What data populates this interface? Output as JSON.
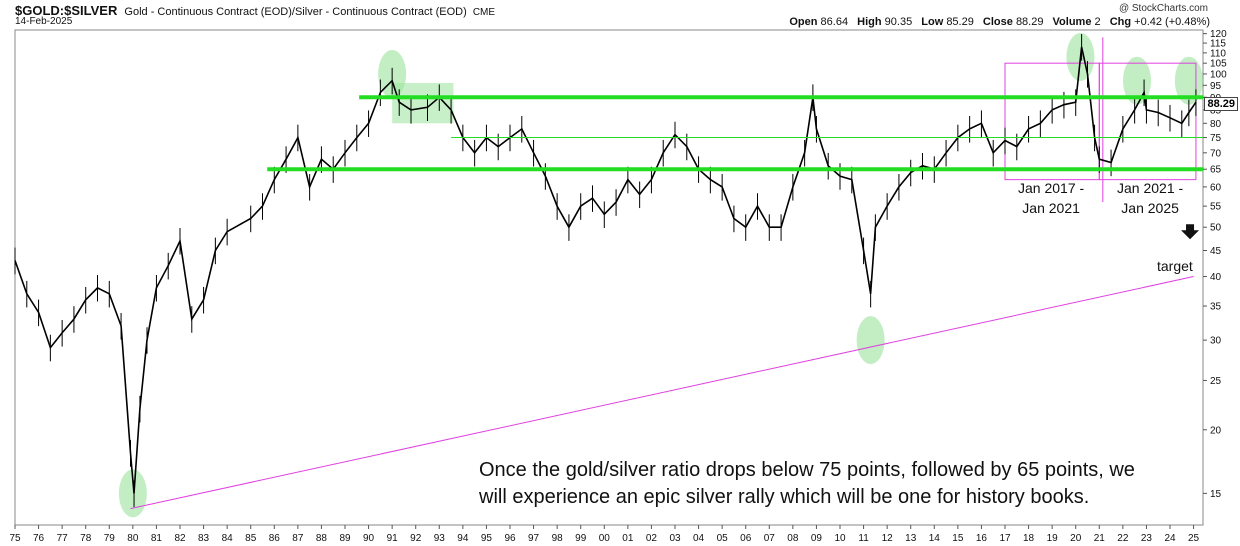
{
  "header": {
    "symbol": "$GOLD:$SILVER",
    "description": "Gold - Continuous Contract (EOD)/Silver - Continuous Contract (EOD)",
    "exchange": "CME",
    "date": "14-Feb-2025",
    "watermark": "@ StockCharts.com"
  },
  "ohlc": {
    "open_label": "Open",
    "open": "86.64",
    "high_label": "High",
    "high": "90.35",
    "low_label": "Low",
    "low": "85.29",
    "close_label": "Close",
    "close": "88.29",
    "volume_label": "Volume",
    "volume": "2",
    "chg_label": "Chg",
    "chg": "+0.42 (+0.48%)"
  },
  "price_tag": "88.29",
  "annotations": {
    "main_text": "Once the gold/silver ratio drops below 75 points, followed by 65 points, we\nwill experience an epic silver rally which will be one for history books.",
    "box1_label": "Jan 2017 -\nJan 2021",
    "box2_label": "Jan 2021 -\nJan 2025",
    "target_label": "target"
  },
  "colors": {
    "price": "#000000",
    "support": "#22dd22",
    "trendline": "#e040e0",
    "highlight": "#9be39b"
  },
  "chart_data": {
    "type": "line",
    "scale": "log",
    "ylim": [
      13,
      122
    ],
    "y_ticks": [
      15,
      20,
      25,
      30,
      35,
      40,
      45,
      50,
      55,
      60,
      65,
      70,
      75,
      80,
      85,
      90,
      95,
      100,
      105,
      110,
      115,
      120
    ],
    "x_ticks": [
      "75",
      "76",
      "77",
      "78",
      "79",
      "80",
      "81",
      "82",
      "83",
      "84",
      "85",
      "86",
      "87",
      "88",
      "89",
      "90",
      "91",
      "92",
      "93",
      "94",
      "95",
      "96",
      "97",
      "98",
      "99",
      "00",
      "01",
      "02",
      "03",
      "04",
      "05",
      "06",
      "07",
      "08",
      "09",
      "10",
      "11",
      "12",
      "13",
      "14",
      "15",
      "16",
      "17",
      "18",
      "19",
      "20",
      "21",
      "22",
      "23",
      "24",
      "25"
    ],
    "series": [
      {
        "x": [
          1975.0,
          1975.5,
          1976.0,
          1976.5,
          1977.0,
          1977.5,
          1978.0,
          1978.5,
          1979.0,
          1979.5,
          1979.9,
          1980.05,
          1980.3,
          1980.6,
          1981.0,
          1981.5,
          1982.0,
          1982.5,
          1983.0,
          1983.5,
          1984.0,
          1985.0,
          1985.5,
          1986.0,
          1986.5,
          1987.0,
          1987.5,
          1988.0,
          1988.5,
          1989.0,
          1989.5,
          1990.0,
          1990.5,
          1991.0,
          1991.3,
          1991.8,
          1992.5,
          1993.0,
          1993.5,
          1994.0,
          1994.5,
          1995.0,
          1995.5,
          1996.0,
          1996.5,
          1997.0,
          1997.5,
          1998.0,
          1998.5,
          1999.0,
          1999.5,
          2000.0,
          2000.5,
          2001.0,
          2001.5,
          2002.0,
          2002.5,
          2003.0,
          2003.5,
          2004.0,
          2004.5,
          2005.0,
          2005.5,
          2006.0,
          2006.5,
          2007.0,
          2007.5,
          2008.0,
          2008.5,
          2008.85,
          2009.0,
          2009.5,
          2010.0,
          2010.5,
          2011.0,
          2011.3,
          2011.5,
          2012.0,
          2012.5,
          2013.0,
          2013.5,
          2014.0,
          2014.5,
          2015.0,
          2015.5,
          2016.0,
          2016.5,
          2017.0,
          2017.5,
          2018.0,
          2018.5,
          2019.0,
          2019.5,
          2020.0,
          2020.25,
          2020.5,
          2020.8,
          2021.0,
          2021.5,
          2022.0,
          2022.5,
          2022.9,
          2023.0,
          2023.5,
          2024.0,
          2024.5,
          2024.8,
          2025.1
        ],
        "values": [
          43,
          37,
          34,
          29,
          31,
          33,
          36,
          38,
          37,
          32,
          18,
          15,
          22,
          30,
          38,
          42,
          47,
          33,
          36,
          45,
          49,
          52,
          55,
          62,
          68,
          75,
          60,
          68,
          65,
          70,
          75,
          80,
          92,
          97,
          88,
          85,
          86,
          90,
          85,
          75,
          70,
          75,
          72,
          75,
          78,
          70,
          63,
          55,
          50,
          55,
          57,
          53,
          56,
          62,
          58,
          62,
          70,
          76,
          72,
          65,
          62,
          60,
          52,
          50,
          55,
          50,
          50,
          60,
          70,
          90,
          78,
          66,
          63,
          62,
          45,
          37,
          50,
          55,
          60,
          64,
          66,
          65,
          70,
          75,
          78,
          80,
          70,
          74,
          72,
          78,
          80,
          85,
          87,
          88,
          113,
          100,
          75,
          68,
          67,
          78,
          85,
          92,
          85,
          84,
          82,
          80,
          84,
          88
        ]
      }
    ],
    "trendline": {
      "from": [
        1979.9,
        14
      ],
      "to": [
        2025.0,
        40
      ]
    },
    "horizontal_lines": [
      90,
      75,
      65
    ],
    "target_value": 40,
    "highlight_ellipses": [
      [
        1980.0,
        15
      ],
      [
        1991.0,
        100
      ],
      [
        2011.3,
        30
      ],
      [
        2020.2,
        108
      ],
      [
        2022.6,
        97
      ],
      [
        2024.8,
        97
      ]
    ]
  }
}
